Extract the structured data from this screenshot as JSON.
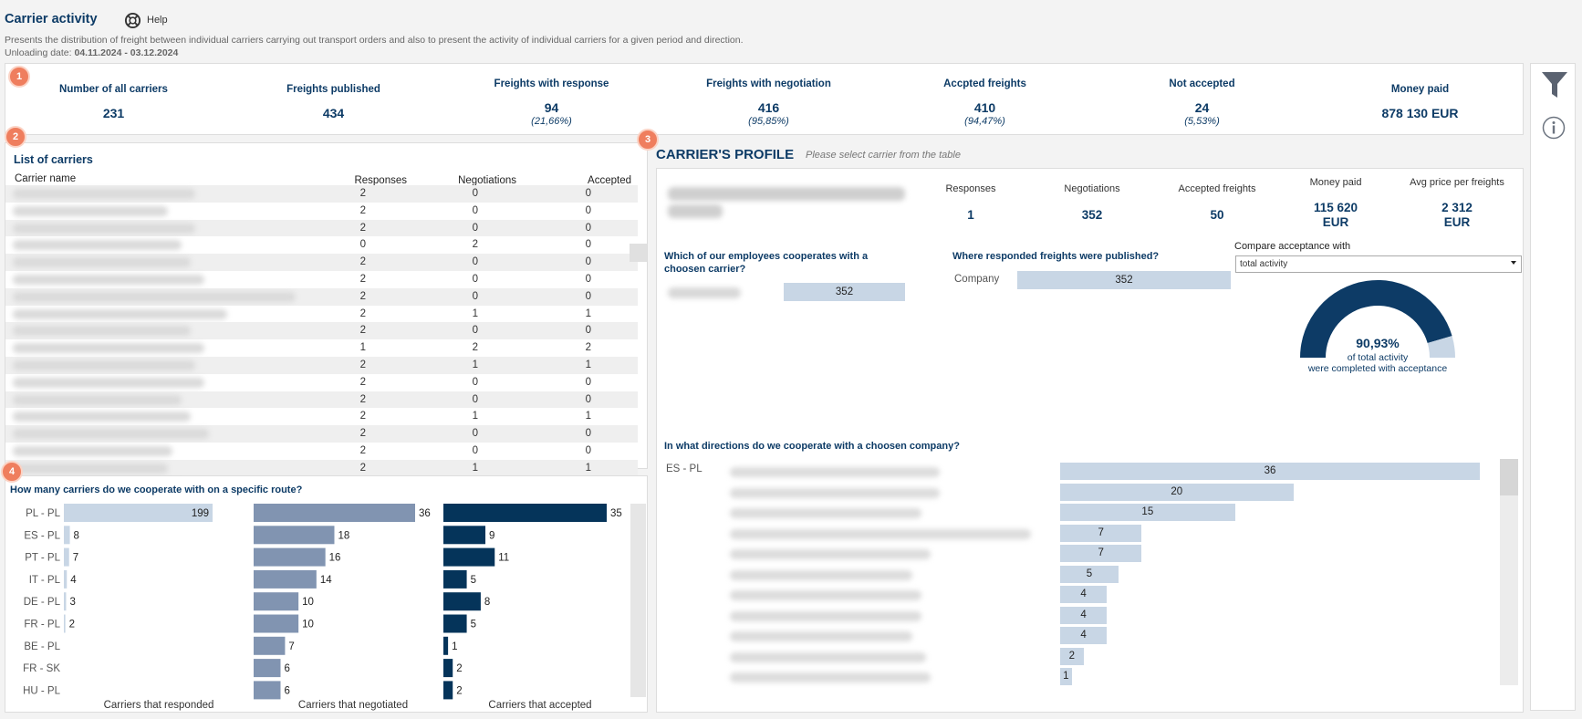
{
  "header": {
    "title": "Carrier activity",
    "help_label": "Help",
    "description": "Presents the distribution of freight between individual carriers carrying out transport orders and also to present the activity of individual carriers for a given period and direction.",
    "date_label": "Unloading date: ",
    "date_value": "04.11.2024 - 03.12.2024"
  },
  "badges": [
    "1",
    "2",
    "3",
    "4"
  ],
  "kpis": [
    {
      "label": "Number of all carriers",
      "value": "231",
      "pct": ""
    },
    {
      "label": "Freights published",
      "value": "434",
      "pct": ""
    },
    {
      "label": "Freights with response",
      "value": "94",
      "pct": "(21,66%)"
    },
    {
      "label": "Freights with negotiation",
      "value": "416",
      "pct": "(95,85%)"
    },
    {
      "label": "Accpted freights",
      "value": "410",
      "pct": "(94,47%)"
    },
    {
      "label": "Not accepted",
      "value": "24",
      "pct": "(5,53%)"
    },
    {
      "label": "Money paid",
      "value": "878 130 EUR",
      "pct": ""
    }
  ],
  "carriers": {
    "title": "List of carriers",
    "columns": [
      "Carrier name",
      "Responses",
      "Negotiations",
      "Accepted"
    ],
    "rows": [
      [
        "2",
        "0",
        "0"
      ],
      [
        "2",
        "0",
        "0"
      ],
      [
        "2",
        "0",
        "0"
      ],
      [
        "0",
        "2",
        "0"
      ],
      [
        "2",
        "0",
        "0"
      ],
      [
        "2",
        "0",
        "0"
      ],
      [
        "2",
        "0",
        "0"
      ],
      [
        "2",
        "1",
        "1"
      ],
      [
        "2",
        "0",
        "0"
      ],
      [
        "1",
        "2",
        "2"
      ],
      [
        "2",
        "1",
        "1"
      ],
      [
        "2",
        "0",
        "0"
      ],
      [
        "2",
        "0",
        "0"
      ],
      [
        "2",
        "1",
        "1"
      ],
      [
        "2",
        "0",
        "0"
      ],
      [
        "2",
        "0",
        "0"
      ],
      [
        "2",
        "1",
        "1"
      ]
    ]
  },
  "routes": {
    "title": "How many carriers do we cooperate with on a specific route?",
    "labels": [
      "PL - PL",
      "ES - PL",
      "PT - PL",
      "IT - PL",
      "DE - PL",
      "FR - PL",
      "BE - PL",
      "FR - SK",
      "HU - PL"
    ],
    "responded": [
      199,
      8,
      7,
      4,
      3,
      2,
      null,
      null,
      null
    ],
    "negotiated": [
      36,
      18,
      16,
      14,
      10,
      10,
      7,
      6,
      6
    ],
    "accepted": [
      35,
      9,
      11,
      5,
      8,
      5,
      1,
      2,
      2
    ],
    "footer": [
      "Carriers that responded",
      "Carriers that negotiated",
      "Carriers that accepted"
    ]
  },
  "profile": {
    "title": "CARRIER'S PROFILE",
    "hint": "Please select carrier from the table",
    "stats": [
      {
        "label": "Responses",
        "value": "1"
      },
      {
        "label": "Negotiations",
        "value": "352"
      },
      {
        "label": "Accepted freights",
        "value": "50"
      },
      {
        "label": "Money paid",
        "value": "115 620\nEUR"
      },
      {
        "label": "Avg price per freights",
        "value": "2 312\nEUR"
      }
    ],
    "employees_q": "Which of our employees cooperates with a choosen carrier?",
    "employees_value": "352",
    "published_q": "Where responded freights were published?",
    "published_label": "Company",
    "published_value": "352",
    "compare_label": "Compare acceptance with",
    "compare_value": "total activity",
    "gauge_value": "90,93%",
    "gauge_fraction": 0.9093,
    "gauge_line1": "of total activity",
    "gauge_line2": "were completed with acceptance",
    "directions_q": "In what directions do we cooperate with a choosen company?",
    "direction_label": "ES - PL",
    "direction_values": [
      36,
      20,
      15,
      7,
      7,
      5,
      4,
      4,
      4,
      2,
      1
    ]
  },
  "colors": {
    "navy": "#0d3b66",
    "light_bar": "#c8d6e5",
    "mid_bar": "#8194b1",
    "dark_bar": "#05345a",
    "badge": "#ef7e5e"
  }
}
